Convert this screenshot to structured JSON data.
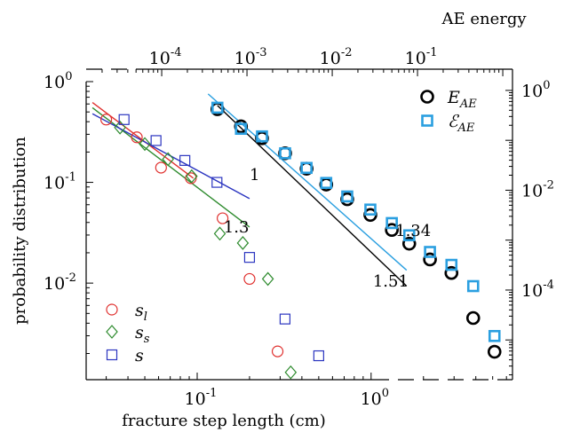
{
  "chart_data": {
    "type": "scatter",
    "scale": {
      "x": "log",
      "y": "log",
      "top_x": "log",
      "right_y": "log"
    },
    "axes": {
      "bottom_x": {
        "label": "fracture step length (cm)",
        "range": [
          0.023,
          6.5
        ],
        "ticks": [
          {
            "value": 0.1,
            "base": "10",
            "exp": "-1"
          },
          {
            "value": 1,
            "base": "10",
            "exp": "0"
          }
        ]
      },
      "left_y": {
        "label": "probability distribution",
        "range": [
          0.0011,
          1.0
        ],
        "ticks": [
          {
            "value": 1,
            "base": "10",
            "exp": "0"
          },
          {
            "value": 0.1,
            "base": "10",
            "exp": "-1"
          },
          {
            "value": 0.01,
            "base": "10",
            "exp": "-2"
          }
        ]
      },
      "top_x": {
        "label": "AE energy",
        "range": [
          1.3e-05,
          1.3
        ],
        "ticks": [
          {
            "value": 0.0001,
            "base": "10",
            "exp": "-4"
          },
          {
            "value": 0.001,
            "base": "10",
            "exp": "-3"
          },
          {
            "value": 0.01,
            "base": "10",
            "exp": "-2"
          },
          {
            "value": 0.1,
            "base": "10",
            "exp": "-1"
          }
        ]
      },
      "right_y": {
        "range": [
          1.6e-06,
          1.5
        ],
        "ticks": [
          {
            "value": 1,
            "base": "10",
            "exp": "0"
          },
          {
            "value": 0.01,
            "base": "10",
            "exp": "-2"
          },
          {
            "value": 0.0001,
            "base": "10",
            "exp": "-4"
          }
        ]
      }
    },
    "series": [
      {
        "name": "s_l",
        "legend_base": "s",
        "legend_sub": "l",
        "marker": "circle",
        "color": "#e0312f",
        "axis": "bottom-left",
        "x": [
          0.03,
          0.045,
          0.062,
          0.092,
          0.14,
          0.2,
          0.29
        ],
        "y": [
          0.42,
          0.28,
          0.14,
          0.11,
          0.044,
          0.011,
          0.0021
        ]
      },
      {
        "name": "s_s",
        "legend_base": "s",
        "legend_sub": "s",
        "marker": "diamond",
        "color": "#2e8b2e",
        "axis": "bottom-left",
        "x": [
          0.036,
          0.05,
          0.068,
          0.093,
          0.135,
          0.183,
          0.255,
          0.345
        ],
        "y": [
          0.35,
          0.24,
          0.17,
          0.115,
          0.031,
          0.025,
          0.011,
          0.0013
        ]
      },
      {
        "name": "s",
        "legend_base": "s",
        "legend_sub": "",
        "marker": "square",
        "color": "#2b35c0",
        "axis": "bottom-left",
        "x": [
          0.038,
          0.058,
          0.085,
          0.13,
          0.2,
          0.32,
          0.5
        ],
        "y": [
          0.42,
          0.26,
          0.165,
          0.1,
          0.018,
          0.0044,
          0.0019
        ]
      },
      {
        "name": "E_AE",
        "legend_base": "E",
        "legend_sub": "AE",
        "marker": "circle-bold",
        "color": "#000000",
        "axis": "top-right",
        "x": [
          0.00045,
          0.00085,
          0.0015,
          0.0028,
          0.005,
          0.0085,
          0.015,
          0.028,
          0.05,
          0.08,
          0.14,
          0.25,
          0.45,
          0.8
        ],
        "y": [
          0.42,
          0.19,
          0.11,
          0.055,
          0.027,
          0.013,
          0.0066,
          0.0032,
          0.0016,
          0.00085,
          0.00041,
          0.00022,
          2.75e-05,
          5.8e-06
        ]
      },
      {
        "name": "ℰ_AE",
        "legend_base": "ℰ",
        "legend_sub": "AE",
        "marker": "square-bold",
        "color": "#2a9fe0",
        "axis": "top-right",
        "x": [
          0.00045,
          0.00085,
          0.0015,
          0.0028,
          0.005,
          0.0085,
          0.015,
          0.028,
          0.05,
          0.08,
          0.14,
          0.25,
          0.45,
          0.8
        ],
        "y": [
          0.45,
          0.17,
          0.12,
          0.055,
          0.028,
          0.014,
          0.0075,
          0.0041,
          0.0022,
          0.00125,
          0.00058,
          0.00032,
          0.00012,
          1.2e-05
        ]
      }
    ],
    "fits": [
      {
        "color": "#e0312f",
        "axis": "bottom-left",
        "x": [
          0.025,
          0.095
        ],
        "y": [
          0.62,
          0.11
        ]
      },
      {
        "color": "#2e8b2e",
        "axis": "bottom-left",
        "x": [
          0.025,
          0.2
        ],
        "y": [
          0.55,
          0.036
        ]
      },
      {
        "color": "#2b35c0",
        "axis": "bottom-left",
        "x": [
          0.025,
          0.2
        ],
        "y": [
          0.48,
          0.069
        ]
      },
      {
        "color": "#000000",
        "axis": "top-right",
        "x": [
          0.00045,
          0.0745
        ],
        "y": [
          0.5,
          0.00012
        ]
      },
      {
        "color": "#2a9fe0",
        "axis": "top-right",
        "x": [
          0.00035,
          0.0745
        ],
        "y": [
          0.85,
          0.00025
        ]
      }
    ],
    "annotations": [
      {
        "text": "1",
        "x": 0.2,
        "y": 0.105,
        "axis": "bottom-left"
      },
      {
        "text": "1.3",
        "x": 0.142,
        "y": 0.032,
        "axis": "bottom-left"
      },
      {
        "text": "1.34",
        "x": 0.055,
        "y": 0.0012,
        "axis": "top-right"
      },
      {
        "text": "1.51",
        "x": 0.03,
        "y": 0.000118,
        "axis": "top-right"
      }
    ],
    "legend_placement": [
      "top-right",
      "bottom-left"
    ],
    "grid": false
  }
}
